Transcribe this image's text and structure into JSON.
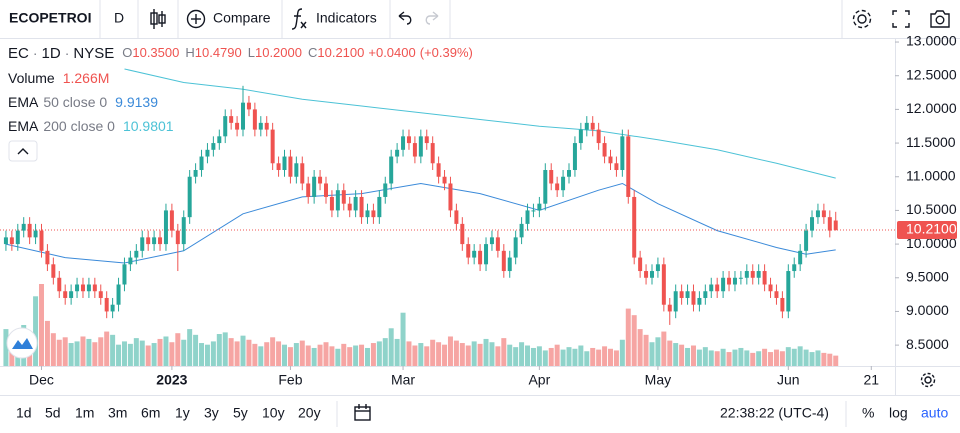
{
  "toolbar": {
    "symbol": "ECOPETROI",
    "interval": "D",
    "compare": "Compare",
    "indicators": "Indicators"
  },
  "chart_data": {
    "type": "candlestick",
    "legend": {
      "symbol": "EC",
      "separator": "·",
      "interval": "1D",
      "exchange": "NYSE",
      "ohlc_names": [
        "O",
        "H",
        "L",
        "C"
      ],
      "ohlc_labels": [
        "10.3500",
        "10.4790",
        "10.2000",
        "10.2100"
      ],
      "change": {
        "value": 0.04,
        "label": "+0.0400"
      },
      "change_pct": {
        "value": 0.39,
        "label": "(+0.39%)"
      }
    },
    "colors": {
      "up": "#26a69a",
      "down": "#ef5350",
      "volume_up": "#8fd3ca",
      "volume_down": "#f6a5a3",
      "last_price": "#ef5350"
    },
    "ohlc": {
      "open": [
        10.0,
        10.1,
        10.0,
        10.2,
        10.3,
        10.1,
        10.2,
        9.9,
        9.7,
        9.5,
        9.3,
        9.2,
        9.3,
        9.4,
        9.3,
        9.4,
        9.3,
        9.2,
        9.0,
        9.1,
        9.4,
        9.7,
        9.8,
        9.9,
        10.1,
        10.0,
        10.1,
        10.0,
        10.5,
        10.2,
        10.0,
        10.4,
        11.0,
        11.1,
        11.3,
        11.4,
        11.5,
        11.6,
        11.9,
        11.8,
        11.7,
        12.1,
        12.0,
        11.7,
        11.8,
        11.7,
        11.2,
        11.1,
        11.3,
        11.0,
        11.2,
        10.9,
        10.7,
        11.0,
        10.9,
        10.7,
        10.5,
        10.8,
        10.6,
        10.5,
        10.7,
        10.4,
        10.5,
        10.4,
        10.7,
        10.9,
        11.3,
        11.4,
        11.6,
        11.5,
        11.3,
        11.6,
        11.5,
        11.2,
        11.0,
        10.9,
        10.5,
        10.3,
        10.0,
        9.8,
        9.9,
        9.7,
        10.0,
        10.1,
        9.9,
        9.6,
        9.8,
        10.1,
        10.3,
        10.5,
        10.5,
        10.6,
        11.1,
        10.9,
        10.8,
        11.0,
        11.1,
        11.5,
        11.7,
        11.8,
        11.7,
        11.5,
        11.3,
        11.2,
        11.1,
        11.6,
        10.7,
        9.8,
        9.6,
        9.5,
        9.6,
        9.7,
        9.1,
        9.0,
        9.3,
        9.2,
        9.3,
        9.1,
        9.2,
        9.3,
        9.4,
        9.3,
        9.5,
        9.4,
        9.5,
        9.5,
        9.6,
        9.5,
        9.6,
        9.4,
        9.3,
        9.2,
        9.0,
        9.6,
        9.7,
        9.9,
        10.2,
        10.4,
        10.5,
        10.4,
        10.35
      ],
      "high": [
        10.2,
        10.2,
        10.3,
        10.4,
        10.4,
        10.3,
        10.3,
        10.0,
        9.8,
        9.6,
        9.4,
        9.4,
        9.5,
        9.5,
        9.5,
        9.5,
        9.4,
        9.3,
        9.2,
        9.5,
        9.8,
        9.9,
        10.0,
        10.2,
        10.2,
        10.2,
        10.2,
        10.6,
        10.6,
        10.3,
        10.5,
        11.1,
        11.2,
        11.4,
        11.5,
        11.6,
        11.7,
        12.0,
        12.0,
        11.9,
        12.35,
        12.2,
        12.1,
        11.9,
        11.9,
        11.8,
        11.3,
        11.4,
        11.4,
        11.3,
        11.3,
        11.0,
        11.1,
        11.1,
        11.0,
        10.8,
        10.9,
        10.9,
        10.7,
        10.8,
        10.8,
        10.6,
        10.6,
        10.8,
        11.0,
        11.4,
        11.5,
        11.7,
        11.7,
        11.6,
        11.7,
        11.7,
        11.6,
        11.3,
        11.1,
        11.0,
        10.6,
        10.4,
        10.1,
        10.0,
        10.0,
        10.1,
        10.2,
        10.2,
        10.0,
        9.9,
        10.2,
        10.4,
        10.6,
        10.6,
        10.7,
        11.2,
        11.2,
        11.0,
        11.1,
        11.2,
        11.6,
        11.8,
        11.9,
        11.9,
        11.8,
        11.6,
        11.4,
        11.3,
        11.7,
        11.7,
        10.8,
        9.9,
        9.7,
        9.7,
        9.8,
        9.8,
        9.2,
        9.4,
        9.4,
        9.4,
        9.4,
        9.3,
        9.4,
        9.5,
        9.5,
        9.6,
        9.6,
        9.6,
        9.6,
        9.7,
        9.7,
        9.7,
        9.7,
        9.5,
        9.4,
        9.3,
        9.7,
        9.8,
        10.0,
        10.3,
        10.5,
        10.6,
        10.6,
        10.5,
        10.479
      ],
      "low": [
        9.9,
        9.9,
        9.9,
        10.1,
        10.0,
        10.0,
        9.8,
        9.6,
        9.4,
        9.2,
        9.1,
        9.1,
        9.2,
        9.2,
        9.2,
        9.2,
        9.1,
        8.9,
        8.9,
        9.0,
        9.3,
        9.6,
        9.7,
        9.8,
        9.9,
        9.9,
        9.9,
        9.9,
        10.1,
        9.6,
        9.9,
        10.3,
        10.9,
        11.0,
        11.2,
        11.3,
        11.4,
        11.5,
        11.7,
        11.6,
        11.6,
        11.9,
        11.6,
        11.6,
        11.6,
        11.1,
        11.0,
        11.0,
        10.9,
        10.9,
        10.8,
        10.6,
        10.6,
        10.8,
        10.6,
        10.4,
        10.4,
        10.5,
        10.4,
        10.4,
        10.3,
        10.3,
        10.3,
        10.3,
        10.6,
        10.8,
        11.2,
        11.3,
        11.4,
        11.2,
        11.2,
        11.4,
        11.1,
        10.9,
        10.8,
        10.4,
        10.2,
        9.9,
        9.7,
        9.7,
        9.6,
        9.6,
        9.9,
        9.8,
        9.5,
        9.5,
        9.7,
        10.0,
        10.2,
        10.4,
        10.4,
        10.5,
        10.8,
        10.7,
        10.7,
        10.9,
        11.0,
        11.4,
        11.6,
        11.6,
        11.4,
        11.2,
        11.1,
        11.0,
        11.0,
        10.6,
        9.7,
        9.5,
        9.4,
        9.4,
        9.5,
        9.0,
        8.8,
        8.9,
        9.1,
        9.1,
        9.0,
        9.0,
        9.1,
        9.2,
        9.2,
        9.2,
        9.3,
        9.3,
        9.4,
        9.4,
        9.4,
        9.4,
        9.3,
        9.2,
        9.1,
        8.9,
        8.9,
        9.5,
        9.6,
        9.8,
        10.1,
        10.3,
        10.3,
        10.1,
        10.2
      ],
      "close": [
        10.1,
        10.0,
        10.2,
        10.3,
        10.1,
        10.2,
        9.9,
        9.7,
        9.5,
        9.3,
        9.2,
        9.3,
        9.4,
        9.3,
        9.4,
        9.3,
        9.2,
        9.0,
        9.1,
        9.4,
        9.7,
        9.8,
        9.9,
        10.1,
        10.0,
        10.1,
        10.0,
        10.5,
        10.2,
        10.0,
        10.4,
        11.0,
        11.1,
        11.3,
        11.4,
        11.5,
        11.6,
        11.9,
        11.8,
        11.7,
        12.1,
        12.0,
        11.7,
        11.8,
        11.7,
        11.2,
        11.1,
        11.3,
        11.0,
        11.2,
        10.9,
        10.7,
        11.0,
        10.9,
        10.7,
        10.5,
        10.8,
        10.6,
        10.5,
        10.7,
        10.4,
        10.5,
        10.4,
        10.7,
        10.9,
        11.3,
        11.4,
        11.6,
        11.5,
        11.3,
        11.6,
        11.5,
        11.2,
        11.0,
        10.9,
        10.5,
        10.3,
        10.0,
        9.8,
        9.9,
        9.7,
        10.0,
        10.1,
        9.9,
        9.6,
        9.8,
        10.1,
        10.3,
        10.5,
        10.5,
        10.6,
        11.1,
        10.9,
        10.8,
        11.0,
        11.1,
        11.5,
        11.7,
        11.8,
        11.7,
        11.5,
        11.3,
        11.2,
        11.1,
        11.6,
        10.7,
        9.8,
        9.6,
        9.5,
        9.6,
        9.7,
        9.1,
        9.0,
        9.3,
        9.2,
        9.3,
        9.1,
        9.2,
        9.3,
        9.4,
        9.3,
        9.5,
        9.4,
        9.5,
        9.5,
        9.6,
        9.5,
        9.6,
        9.4,
        9.3,
        9.2,
        9.0,
        9.6,
        9.7,
        9.9,
        10.2,
        10.4,
        10.5,
        10.4,
        10.2,
        10.21
      ]
    },
    "volume": {
      "name": "Volume",
      "last_label": "1.266M",
      "values": [
        4500000,
        3800000,
        4200000,
        5000000,
        3600000,
        8500000,
        10000000,
        5500000,
        4000000,
        3200000,
        3500000,
        2800000,
        3000000,
        3600000,
        3300000,
        2900000,
        3500000,
        4200000,
        3800000,
        2600000,
        3000000,
        2700000,
        3400000,
        3100000,
        2500000,
        2800000,
        3300000,
        3600000,
        2900000,
        4000000,
        3200000,
        4500000,
        3800000,
        2800000,
        2600000,
        3000000,
        3900000,
        4100000,
        3400000,
        3000000,
        3700000,
        3200000,
        2700000,
        2400000,
        2900000,
        3500000,
        3000000,
        2600000,
        2300000,
        2800000,
        3100000,
        2500000,
        2200000,
        2600000,
        2900000,
        2400000,
        2100000,
        2700000,
        2300000,
        2500000,
        2600000,
        2200000,
        2800000,
        3000000,
        3400000,
        4600000,
        3300000,
        6500000,
        3000000,
        2500000,
        2800000,
        2400000,
        3200000,
        2900000,
        2600000,
        3600000,
        3100000,
        2800000,
        2500000,
        3000000,
        2700000,
        3300000,
        2900000,
        2400000,
        3400000,
        2600000,
        2300000,
        2900000,
        2500000,
        2200000,
        2400000,
        1900000,
        2200000,
        2600000,
        2000000,
        2300000,
        2100000,
        2500000,
        1800000,
        2200000,
        2000000,
        2400000,
        2100000,
        1900000,
        3200000,
        7000000,
        6200000,
        4500000,
        3800000,
        2900000,
        3500000,
        4200000,
        3100000,
        2800000,
        2600000,
        2200000,
        2500000,
        2000000,
        2300000,
        1900000,
        1800000,
        2100000,
        1700000,
        2000000,
        2200000,
        1900000,
        1600000,
        1800000,
        2100000,
        1700000,
        2000000,
        1800000,
        2300000,
        2100000,
        2400000,
        2000000,
        1700000,
        1900000,
        1600000,
        1500000,
        1266000
      ]
    },
    "ema": [
      {
        "name": "EMA",
        "params": "50 close 0",
        "last_label": "9.9139",
        "color": "#3b8ad9",
        "x": [
          0,
          10,
          20,
          30,
          40,
          50,
          60,
          70,
          80,
          90,
          100,
          104,
          110,
          120,
          130,
          135,
          140
        ],
        "values": [
          10.0,
          9.8,
          9.72,
          9.9,
          10.45,
          10.7,
          10.75,
          10.9,
          10.75,
          10.5,
          10.8,
          10.9,
          10.6,
          10.2,
          9.95,
          9.85,
          9.9139
        ]
      },
      {
        "name": "EMA",
        "params": "200 close 0",
        "last_label": "10.9801",
        "color": "#4cc2d6",
        "x": [
          20,
          30,
          40,
          50,
          60,
          70,
          80,
          90,
          100,
          110,
          120,
          130,
          140
        ],
        "values": [
          12.6,
          12.4,
          12.3,
          12.15,
          12.05,
          11.95,
          11.85,
          11.75,
          11.68,
          11.55,
          11.4,
          11.2,
          10.9801
        ]
      }
    ],
    "xlim": [
      -1,
      150
    ],
    "xticks": [
      {
        "value": 6,
        "label": "Dec"
      },
      {
        "value": 28,
        "label": "2023"
      },
      {
        "value": 48,
        "label": "Feb"
      },
      {
        "value": 67,
        "label": "Mar"
      },
      {
        "value": 90,
        "label": "Apr"
      },
      {
        "value": 110,
        "label": "May"
      },
      {
        "value": 132,
        "label": "Jun"
      },
      {
        "value": 146,
        "label": "21"
      }
    ],
    "ylim": [
      8.19,
      13.06
    ],
    "yticks": [
      {
        "value": 13,
        "label": "13.0000"
      },
      {
        "value": 12.5,
        "label": "12.5000"
      },
      {
        "value": 12,
        "label": "12.0000"
      },
      {
        "value": 11.5,
        "label": "11.5000"
      },
      {
        "value": 11,
        "label": "11.0000"
      },
      {
        "value": 10.5,
        "label": "10.5000"
      },
      {
        "value": 10,
        "label": "10.0000"
      },
      {
        "value": 9.5,
        "label": "9.5000"
      },
      {
        "value": 9,
        "label": "9.0000"
      },
      {
        "value": 8.5,
        "label": "8.5000"
      }
    ],
    "grid": false
  },
  "footer": {
    "ranges": [
      "1d",
      "5d",
      "1m",
      "3m",
      "6m",
      "1y",
      "3y",
      "5y",
      "10y",
      "20y"
    ],
    "time": "22:38:22 (UTC-4)",
    "percent": "%",
    "log": "log",
    "auto": "auto"
  }
}
